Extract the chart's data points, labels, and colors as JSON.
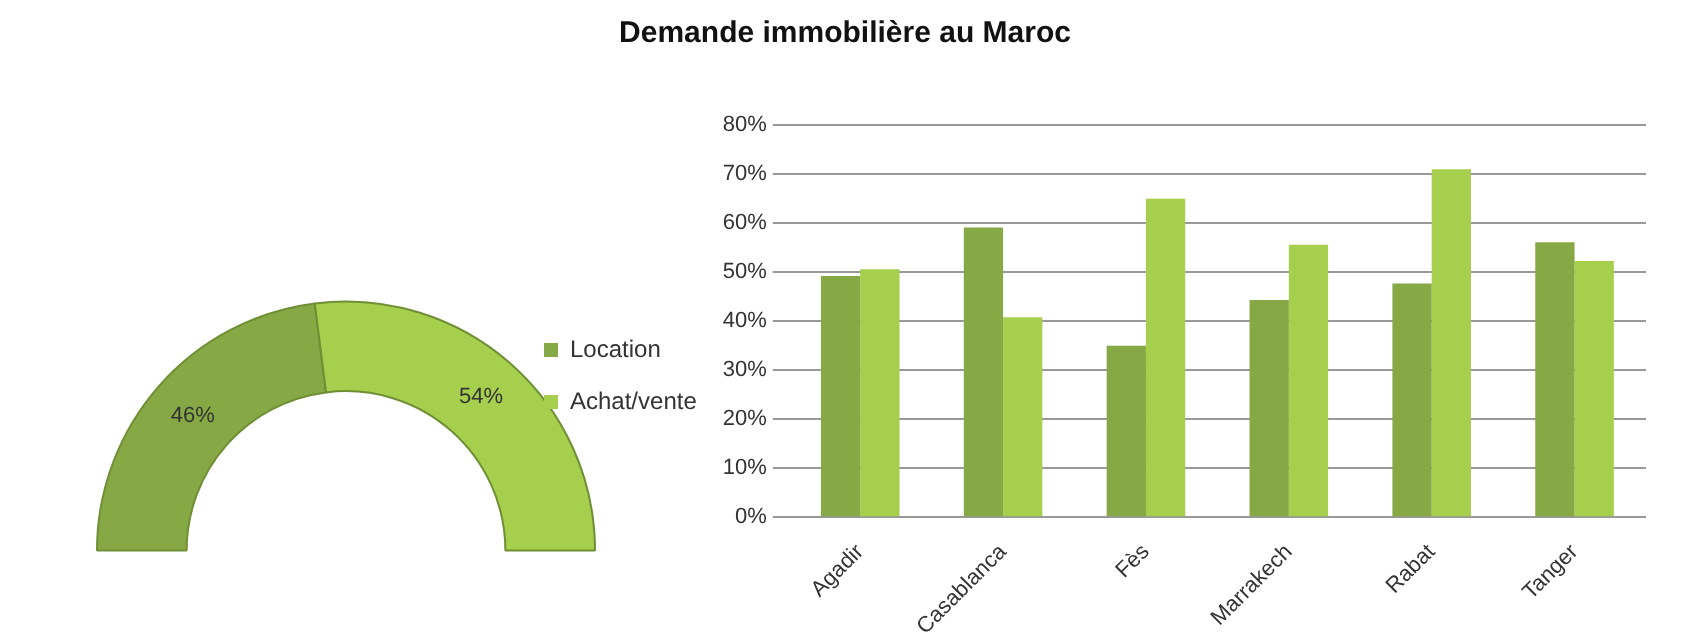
{
  "chart_data": [
    {
      "type": "donut",
      "categories": [
        null,
        null
      ],
      "values": [
        46,
        54
      ],
      "colors": [
        "#86a845",
        "#a6cf4e"
      ],
      "value_labels": [
        "46%",
        "54%"
      ]
    },
    {
      "type": "bar",
      "title": "Demande immobilière au Maroc",
      "categories": [
        "Agadir",
        "Casablanca",
        "Fès",
        "Marrakech",
        "Rabat",
        "Tanger"
      ],
      "series": [
        {
          "name": "Location",
          "color": "#86a845",
          "values": [
            49.2,
            59.1,
            35.0,
            44.3,
            47.7,
            56.1
          ]
        },
        {
          "name": "Achat/vente",
          "color": "#a6cf4e",
          "values": [
            50.6,
            40.8,
            65.0,
            55.6,
            71.0,
            52.3
          ]
        }
      ],
      "ylim": [
        0,
        80
      ],
      "yticks": [
        {
          "value": 0,
          "label": "0%"
        },
        {
          "value": 10,
          "label": "10%"
        },
        {
          "value": 20,
          "label": "20%"
        },
        {
          "value": 30,
          "label": "30%"
        },
        {
          "value": 40,
          "label": "40%"
        },
        {
          "value": 50,
          "label": "50%"
        },
        {
          "value": 60,
          "label": "60%"
        },
        {
          "value": 70,
          "label": "70%"
        },
        {
          "value": 80,
          "label": "80%"
        }
      ],
      "grid": "y",
      "legend": "left"
    }
  ]
}
